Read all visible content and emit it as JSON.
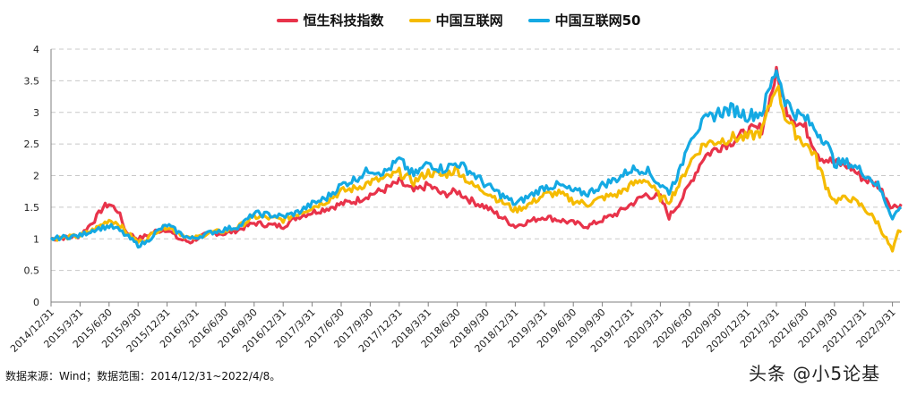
{
  "legend": [
    {
      "label": "恒生科技指数",
      "color": "#e8334a"
    },
    {
      "label": "中国互联网",
      "color": "#f5bb00"
    },
    {
      "label": "中国互联网50",
      "color": "#14a9e3"
    }
  ],
  "footer": {
    "source": "数据来源：Wind；数据范围：2014/12/31~2022/4/8。",
    "watermark": "头条 @小5论基"
  },
  "chart_data": {
    "type": "line",
    "title": "",
    "xlabel": "",
    "ylabel": "",
    "ylim": [
      0,
      4
    ],
    "yticks": [
      "0",
      "0.5",
      "1",
      "1.5",
      "2",
      "2.5",
      "3",
      "3.5",
      "4"
    ],
    "grid": "horizontal dashed",
    "legend_position": "top",
    "categories": [
      "2014/12/31",
      "2015/3/31",
      "2015/6/30",
      "2015/9/30",
      "2015/12/31",
      "2016/3/31",
      "2016/6/30",
      "2016/9/30",
      "2016/12/31",
      "2017/3/31",
      "2017/6/30",
      "2017/9/30",
      "2017/12/31",
      "2018/3/31",
      "2018/6/30",
      "2018/9/30",
      "2018/12/31",
      "2019/3/31",
      "2019/6/30",
      "2019/9/30",
      "2019/12/31",
      "2020/3/31",
      "2020/6/30",
      "2020/9/30",
      "2020/12/31",
      "2021/3/31",
      "2021/6/30",
      "2021/9/30",
      "2021/12/31",
      "2022/3/31"
    ],
    "series": [
      {
        "name": "恒生科技指数",
        "color": "#e8334a",
        "x": [
          0,
          0.5,
          1,
          1.5,
          1.8,
          2,
          2.3,
          2.6,
          3,
          3.3,
          3.6,
          4,
          4.4,
          4.8,
          5,
          5.5,
          6,
          6.5,
          7,
          7.5,
          8,
          8.5,
          9,
          9.5,
          10,
          10.5,
          11,
          11.5,
          12,
          12.5,
          13,
          13.5,
          14,
          14.5,
          15,
          15.5,
          16,
          16.5,
          17,
          17.5,
          18,
          18.5,
          19,
          19.5,
          20,
          20.5,
          21,
          21.3,
          21.7,
          22,
          22.5,
          23,
          23.5,
          24,
          24.5,
          25,
          25.3,
          25.6,
          26,
          26.5,
          27,
          27.5,
          28,
          28.5,
          29,
          29.3
        ],
        "values": [
          1.0,
          1.02,
          1.05,
          1.3,
          1.5,
          1.55,
          1.45,
          1.1,
          1.0,
          1.05,
          1.12,
          1.15,
          1.0,
          0.95,
          1.0,
          1.1,
          1.08,
          1.15,
          1.25,
          1.22,
          1.2,
          1.35,
          1.42,
          1.48,
          1.55,
          1.6,
          1.7,
          1.78,
          1.9,
          1.75,
          1.85,
          1.7,
          1.75,
          1.6,
          1.5,
          1.35,
          1.2,
          1.28,
          1.35,
          1.3,
          1.25,
          1.2,
          1.3,
          1.4,
          1.55,
          1.7,
          1.65,
          1.35,
          1.6,
          1.85,
          2.3,
          2.45,
          2.55,
          2.7,
          2.75,
          3.6,
          3.1,
          2.9,
          2.75,
          2.3,
          2.2,
          2.15,
          1.95,
          1.85,
          1.5,
          1.55
        ]
      },
      {
        "name": "中国互联网",
        "color": "#f5bb00",
        "x": [
          0,
          0.5,
          1,
          1.5,
          2,
          2.3,
          2.6,
          3,
          3.3,
          3.6,
          4,
          4.4,
          4.8,
          5,
          5.5,
          6,
          6.5,
          7,
          7.5,
          8,
          8.5,
          9,
          9.5,
          10,
          10.5,
          11,
          11.5,
          12,
          12.5,
          13,
          13.5,
          14,
          14.5,
          15,
          15.5,
          16,
          16.5,
          17,
          17.5,
          18,
          18.5,
          19,
          19.5,
          20,
          20.5,
          21,
          21.3,
          21.7,
          22,
          22.5,
          23,
          23.5,
          24,
          24.5,
          25,
          25.3,
          25.6,
          26,
          26.3,
          26.7,
          27,
          27.5,
          28,
          28.5,
          29,
          29.2,
          29.3
        ],
        "values": [
          1.0,
          1.02,
          1.05,
          1.15,
          1.3,
          1.25,
          1.1,
          0.95,
          1.0,
          1.12,
          1.2,
          1.1,
          1.0,
          1.02,
          1.1,
          1.12,
          1.2,
          1.35,
          1.33,
          1.3,
          1.4,
          1.5,
          1.6,
          1.75,
          1.8,
          1.9,
          1.95,
          2.05,
          1.9,
          2.05,
          2.0,
          2.1,
          1.85,
          1.75,
          1.6,
          1.45,
          1.55,
          1.7,
          1.72,
          1.6,
          1.55,
          1.65,
          1.7,
          1.85,
          1.95,
          1.65,
          1.6,
          1.9,
          2.2,
          2.5,
          2.55,
          2.6,
          2.6,
          2.7,
          3.45,
          2.95,
          2.7,
          2.5,
          2.35,
          1.85,
          1.6,
          1.65,
          1.5,
          1.25,
          0.8,
          1.1,
          1.1
        ]
      },
      {
        "name": "中国互联网50",
        "color": "#14a9e3",
        "x": [
          0,
          0.5,
          1,
          1.5,
          2,
          2.3,
          2.6,
          3,
          3.3,
          3.6,
          4,
          4.4,
          4.8,
          5,
          5.5,
          6,
          6.5,
          7,
          7.5,
          8,
          8.5,
          9,
          9.5,
          10,
          10.5,
          11,
          11.5,
          12,
          12.5,
          13,
          13.5,
          14,
          14.5,
          15,
          15.5,
          16,
          16.5,
          17,
          17.5,
          18,
          18.5,
          19,
          19.5,
          20,
          20.5,
          21,
          21.3,
          21.7,
          22,
          22.5,
          23,
          23.5,
          24,
          24.5,
          25,
          25.3,
          25.6,
          26,
          26.3,
          26.7,
          27,
          27.5,
          28,
          28.5,
          29,
          29.2,
          29.3
        ],
        "values": [
          1.0,
          1.03,
          1.05,
          1.15,
          1.2,
          1.15,
          1.05,
          0.9,
          0.95,
          1.1,
          1.22,
          1.1,
          1.0,
          1.02,
          1.1,
          1.15,
          1.2,
          1.4,
          1.38,
          1.35,
          1.42,
          1.55,
          1.65,
          1.85,
          1.95,
          2.1,
          2.05,
          2.25,
          2.0,
          2.2,
          2.1,
          2.2,
          2.05,
          1.85,
          1.7,
          1.55,
          1.68,
          1.82,
          1.85,
          1.75,
          1.72,
          1.85,
          1.95,
          2.1,
          2.1,
          1.85,
          1.75,
          2.1,
          2.6,
          2.85,
          3.0,
          3.05,
          2.95,
          3.0,
          3.7,
          3.2,
          3.0,
          2.9,
          2.75,
          2.55,
          2.2,
          2.2,
          2.05,
          1.85,
          1.35,
          1.45,
          1.5
        ]
      }
    ]
  }
}
